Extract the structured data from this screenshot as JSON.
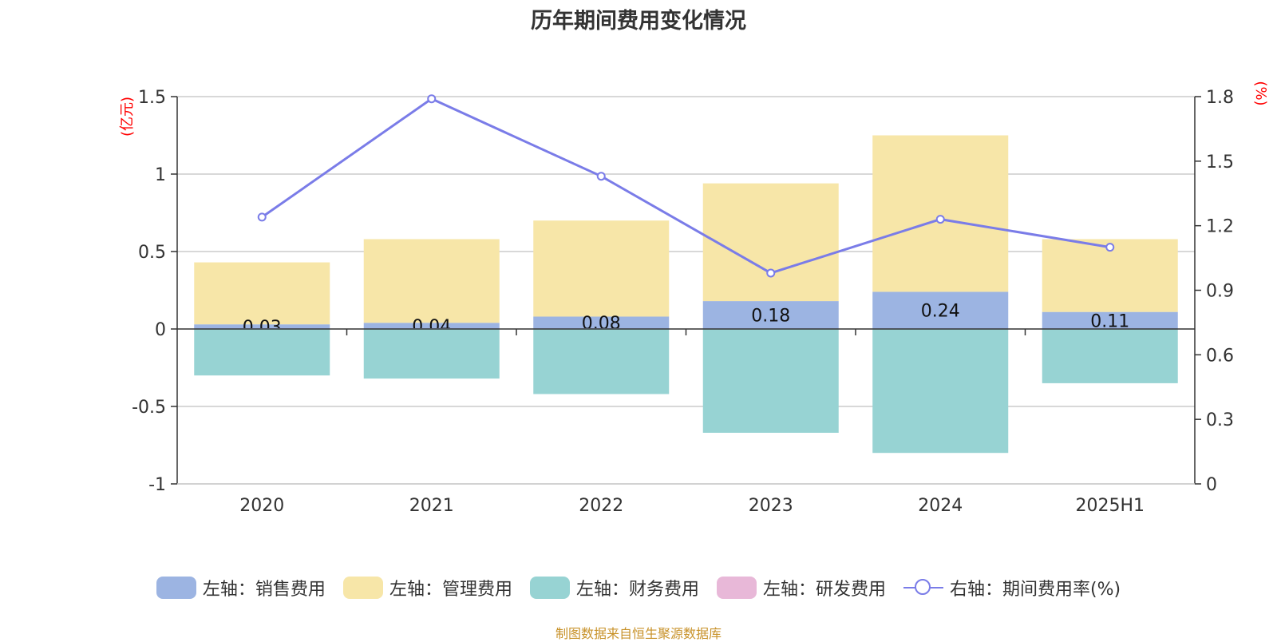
{
  "title": "历年期间费用变化情况",
  "source": "制图数据来自恒生聚源数据库",
  "colors": {
    "sales": "#9cb4e2",
    "admin": "#f7e6a8",
    "finance": "#97d3d3",
    "rnd": "#e8b8d8",
    "rate": "#7a7ce8",
    "axis_unit": "#ff0000",
    "grid": "#cccccc",
    "text": "#333333"
  },
  "legend": [
    {
      "label": "左轴：销售费用",
      "color_key": "sales",
      "kind": "bar"
    },
    {
      "label": "左轴：管理费用",
      "color_key": "admin",
      "kind": "bar"
    },
    {
      "label": "左轴：财务费用",
      "color_key": "finance",
      "kind": "bar"
    },
    {
      "label": "左轴：研发费用",
      "color_key": "rnd",
      "kind": "bar"
    },
    {
      "label": "右轴：期间费用率(%)",
      "color_key": "rate",
      "kind": "line"
    }
  ],
  "chart_data": {
    "type": "bar",
    "title": "历年期间费用变化情况",
    "categories": [
      "2020",
      "2021",
      "2022",
      "2023",
      "2024",
      "2025H1"
    ],
    "left_axis": {
      "unit": "(亿元)",
      "ylim": [
        -1,
        1.5
      ],
      "ticks": [
        "1.5",
        "1",
        "0.5",
        "0",
        "-0.5",
        "-1"
      ]
    },
    "right_axis": {
      "unit": "(%)",
      "ylim": [
        0,
        1.8
      ],
      "ticks": [
        "1.8",
        "1.5",
        "1.2",
        "0.9",
        "0.6",
        "0.3",
        "0"
      ]
    },
    "series": [
      {
        "name": "左轴：销售费用",
        "axis": "left",
        "type": "bar",
        "values": [
          0.03,
          0.04,
          0.08,
          0.18,
          0.24,
          0.11
        ],
        "labels": [
          "0.03",
          "0.04",
          "0.08",
          "0.18",
          "0.24",
          "0.11"
        ]
      },
      {
        "name": "左轴：管理费用",
        "axis": "left",
        "type": "bar",
        "values": [
          0.4,
          0.54,
          0.62,
          0.76,
          1.01,
          0.47
        ]
      },
      {
        "name": "左轴：财务费用",
        "axis": "left",
        "type": "bar",
        "values": [
          -0.3,
          -0.32,
          -0.42,
          -0.67,
          -0.8,
          -0.35
        ]
      },
      {
        "name": "左轴：研发费用",
        "axis": "left",
        "type": "bar",
        "values": [
          0,
          0,
          0,
          0,
          0,
          0
        ]
      },
      {
        "name": "右轴：期间费用率(%)",
        "axis": "right",
        "type": "line",
        "values": [
          1.24,
          1.79,
          1.43,
          0.98,
          1.23,
          1.1
        ]
      }
    ],
    "grid": true,
    "legend_position": "bottom"
  }
}
